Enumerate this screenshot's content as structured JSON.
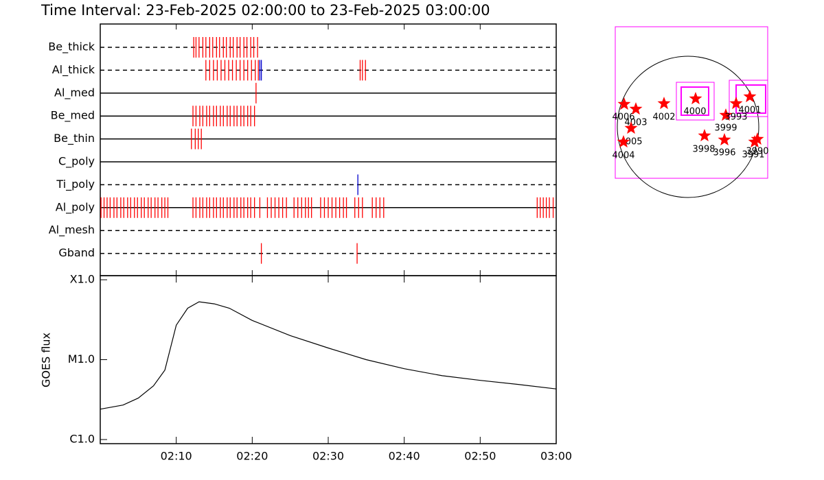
{
  "title": "Time Interval: 23-Feb-2025 02:00:00 to 23-Feb-2025 03:00:00",
  "chart_data": [
    {
      "type": "timeline",
      "rows": [
        {
          "name": "Be_thick",
          "line": "dashed",
          "groups": [
            {
              "color": "#ff0000",
              "times": [
                12.3,
                12.6,
                13.0,
                13.5,
                13.9,
                14.4,
                14.8,
                15.3,
                15.7,
                16.2,
                16.6,
                17.1,
                17.5,
                18.0,
                18.4,
                18.9,
                19.3,
                19.8,
                20.2,
                20.7
              ]
            }
          ]
        },
        {
          "name": "Al_thick",
          "line": "dashed",
          "groups": [
            {
              "color": "#ff0000",
              "times": [
                13.9,
                14.4,
                14.9,
                15.4,
                15.9,
                16.4,
                16.9,
                17.4,
                17.9,
                18.4,
                18.9,
                19.4,
                19.9,
                20.4,
                20.8,
                34.2,
                34.5,
                34.9
              ]
            },
            {
              "color": "#0000cc",
              "times": [
                21.0,
                21.2
              ]
            }
          ]
        },
        {
          "name": "Al_med",
          "line": "solid",
          "groups": [
            {
              "color": "#ff0000",
              "times": [
                20.5
              ]
            }
          ]
        },
        {
          "name": "Be_med",
          "line": "solid",
          "groups": [
            {
              "color": "#ff0000",
              "times": [
                12.2,
                12.6,
                13.1,
                13.5,
                14.0,
                14.4,
                14.9,
                15.3,
                15.8,
                16.2,
                16.7,
                17.1,
                17.6,
                18.0,
                18.5,
                18.9,
                19.4,
                19.8,
                20.3
              ]
            }
          ]
        },
        {
          "name": "Be_thin",
          "line": "solid",
          "groups": [
            {
              "color": "#ff0000",
              "times": [
                12.0,
                12.5,
                12.9,
                13.3
              ]
            }
          ]
        },
        {
          "name": "C_poly",
          "line": "solid",
          "groups": []
        },
        {
          "name": "Ti_poly",
          "line": "dashed",
          "groups": [
            {
              "color": "#0000cc",
              "times": [
                33.9
              ]
            }
          ]
        },
        {
          "name": "Al_poly",
          "line": "solid",
          "groups": [
            {
              "color": "#ff0000",
              "times": [
                0.1,
                0.5,
                0.9,
                1.3,
                1.8,
                2.2,
                2.7,
                3.1,
                3.6,
                4.0,
                4.5,
                4.9,
                5.4,
                5.8,
                6.3,
                6.7,
                7.2,
                7.6,
                8.1,
                8.5,
                8.9,
                12.2,
                12.6,
                13.1,
                13.5,
                14.0,
                14.4,
                14.9,
                15.3,
                15.8,
                16.2,
                16.7,
                17.1,
                17.6,
                18.0,
                18.5,
                18.9,
                19.4,
                19.8,
                20.3,
                21.0,
                22.0,
                22.5,
                23.0,
                23.5,
                24.0,
                24.5,
                25.5,
                26.0,
                26.5,
                27.0,
                27.4,
                27.8,
                29.0,
                29.5,
                30.0,
                30.5,
                31.0,
                31.5,
                32.0,
                32.4,
                33.5,
                34.0,
                34.5,
                35.8,
                36.3,
                36.8,
                37.3,
                57.5,
                57.9,
                58.3,
                58.7,
                59.1,
                59.6
              ]
            }
          ]
        },
        {
          "name": "Al_mesh",
          "line": "dashed",
          "groups": []
        },
        {
          "name": "Gband",
          "line": "dashed",
          "groups": [
            {
              "color": "#ff0000",
              "times": [
                21.2,
                33.8
              ]
            }
          ]
        }
      ],
      "xlim": [
        0,
        60
      ]
    },
    {
      "type": "line",
      "ylabel": "GOES flux",
      "log_y": true,
      "color": "#000000",
      "x": [
        0,
        3,
        5,
        7,
        8.5,
        10,
        11.5,
        13,
        15,
        17,
        20,
        25,
        30,
        35,
        40,
        45,
        50,
        55,
        60
      ],
      "values": [
        2.4e-06,
        2.7e-06,
        3.3e-06,
        4.7e-06,
        7.4e-06,
        2.7e-05,
        4.4e-05,
        5.3e-05,
        5e-05,
        4.4e-05,
        3.1e-05,
        2e-05,
        1.4e-05,
        1e-05,
        7.7e-06,
        6.3e-06,
        5.5e-06,
        4.9e-06,
        4.3e-06
      ],
      "xlim": [
        0,
        60
      ],
      "xticks": [
        {
          "value": 10,
          "label": "02:10"
        },
        {
          "value": 20,
          "label": "02:20"
        },
        {
          "value": 30,
          "label": "02:30"
        },
        {
          "value": 40,
          "label": "02:40"
        },
        {
          "value": 50,
          "label": "02:50"
        },
        {
          "value": 60,
          "label": "03:00"
        }
      ],
      "ylim": [
        1e-06,
        0.0001
      ],
      "yticks": [
        {
          "value": 0.0001,
          "label": "X1.0"
        },
        {
          "value": 1e-05,
          "label": "M1.0"
        },
        {
          "value": 1e-06,
          "label": "C1.0"
        }
      ]
    }
  ],
  "map": {
    "labels": [
      "4006",
      "4003",
      "4005",
      "4004",
      "4002",
      "4000",
      "3999",
      "4001",
      "3993",
      "3998",
      "3996",
      "3990",
      "3991"
    ]
  }
}
